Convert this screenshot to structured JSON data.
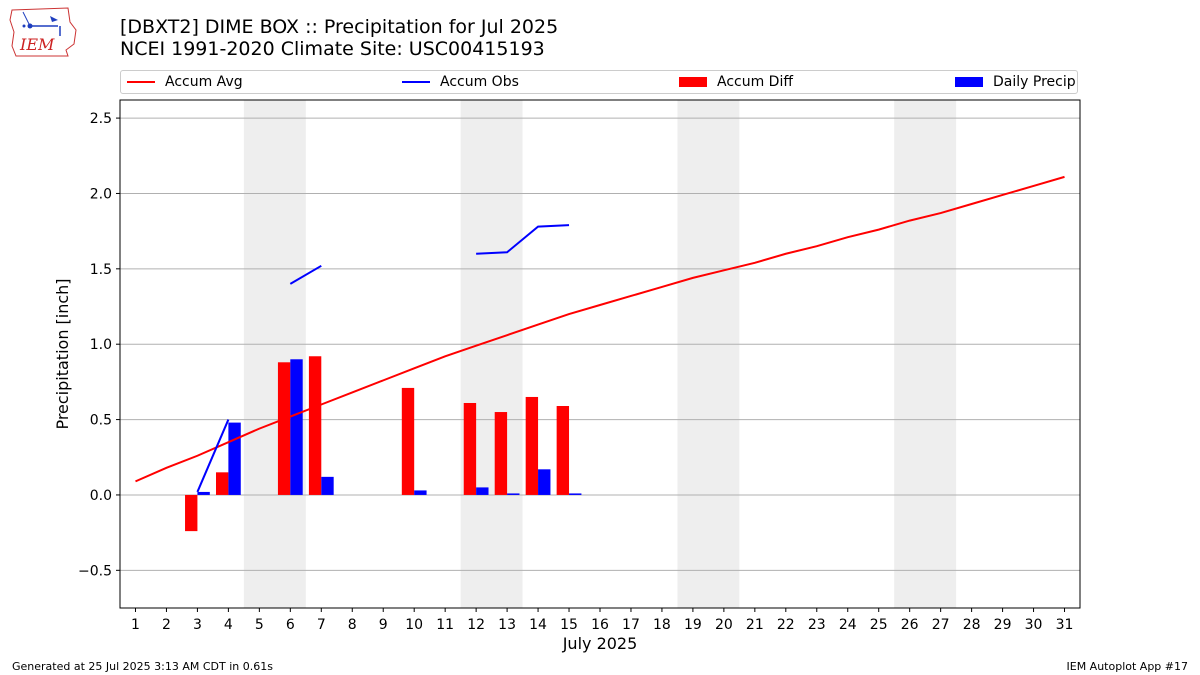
{
  "header": {
    "logo_text": "IEM",
    "title_line1": "[DBXT2] DIME BOX :: Precipitation for Jul 2025",
    "title_line2": "NCEI 1991-2020 Climate Site: USC00415193"
  },
  "legend": {
    "accum_avg": "Accum Avg",
    "accum_obs": "Accum Obs",
    "accum_diff": "Accum Diff",
    "daily_precip": "Daily Precip"
  },
  "colors": {
    "accum_avg": "#ff0000",
    "accum_obs": "#0000ff",
    "accum_diff": "#ff0000",
    "daily_precip": "#0000ff",
    "weekend_shade": "#eeeeee",
    "grid": "#b0b0b0"
  },
  "footer": {
    "left": "Generated at 25 Jul 2025 3:13 AM CDT in 0.61s",
    "right": "IEM Autoplot App #17"
  },
  "chart_data": {
    "type": "bar",
    "xlabel": "July 2025",
    "ylabel": "Precipitation [inch]",
    "xlim": [
      0.5,
      31.5
    ],
    "ylim": [
      -0.75,
      2.62
    ],
    "yticks": [
      -0.5,
      0.0,
      0.5,
      1.0,
      1.5,
      2.0,
      2.5
    ],
    "ytick_labels": [
      "−0.5",
      "0.0",
      "0.5",
      "1.0",
      "1.5",
      "2.0",
      "2.5"
    ],
    "x": [
      1,
      2,
      3,
      4,
      5,
      6,
      7,
      8,
      9,
      10,
      11,
      12,
      13,
      14,
      15,
      16,
      17,
      18,
      19,
      20,
      21,
      22,
      23,
      24,
      25,
      26,
      27,
      28,
      29,
      30,
      31
    ],
    "xtick_labels": [
      "1",
      "2",
      "3",
      "4",
      "5",
      "6",
      "7",
      "8",
      "9",
      "10",
      "11",
      "12",
      "13",
      "14",
      "15",
      "16",
      "17",
      "18",
      "19",
      "20",
      "21",
      "22",
      "23",
      "24",
      "25",
      "26",
      "27",
      "28",
      "29",
      "30",
      "31"
    ],
    "grid": "y",
    "legend_position": "top",
    "weekend_spans": [
      [
        4.5,
        6.5
      ],
      [
        11.5,
        13.5
      ],
      [
        18.5,
        20.5
      ],
      [
        25.5,
        27.5
      ]
    ],
    "series": [
      {
        "name": "Accum Avg",
        "kind": "line",
        "x": [
          1,
          2,
          3,
          4,
          5,
          6,
          7,
          8,
          9,
          10,
          11,
          12,
          13,
          14,
          15,
          16,
          17,
          18,
          19,
          20,
          21,
          22,
          23,
          24,
          25,
          26,
          27,
          28,
          29,
          30,
          31
        ],
        "values": [
          0.09,
          0.18,
          0.26,
          0.35,
          0.44,
          0.52,
          0.6,
          0.68,
          0.76,
          0.84,
          0.92,
          0.99,
          1.06,
          1.13,
          1.2,
          1.26,
          1.32,
          1.38,
          1.44,
          1.49,
          1.54,
          1.6,
          1.65,
          1.71,
          1.76,
          1.82,
          1.87,
          1.93,
          1.99,
          2.05,
          2.11
        ]
      },
      {
        "name": "Accum Obs",
        "kind": "line",
        "segments": [
          {
            "x": [
              3,
              4
            ],
            "values": [
              0.02,
              0.5
            ]
          },
          {
            "x": [
              6,
              7
            ],
            "values": [
              1.4,
              1.52
            ]
          },
          {
            "x": [
              12,
              13,
              14,
              15
            ],
            "values": [
              1.6,
              1.61,
              1.78,
              1.79
            ]
          }
        ]
      },
      {
        "name": "Accum Diff",
        "kind": "bar",
        "offset": "left",
        "x": [
          3,
          4,
          6,
          7,
          10,
          12,
          13,
          14,
          15
        ],
        "values": [
          -0.24,
          0.15,
          0.88,
          0.92,
          0.71,
          0.61,
          0.55,
          0.65,
          0.59
        ]
      },
      {
        "name": "Daily Precip",
        "kind": "bar",
        "offset": "right",
        "x": [
          3,
          4,
          6,
          7,
          10,
          12,
          13,
          14,
          15
        ],
        "values": [
          0.02,
          0.48,
          0.9,
          0.12,
          0.03,
          0.05,
          0.01,
          0.17,
          0.01
        ]
      }
    ]
  }
}
